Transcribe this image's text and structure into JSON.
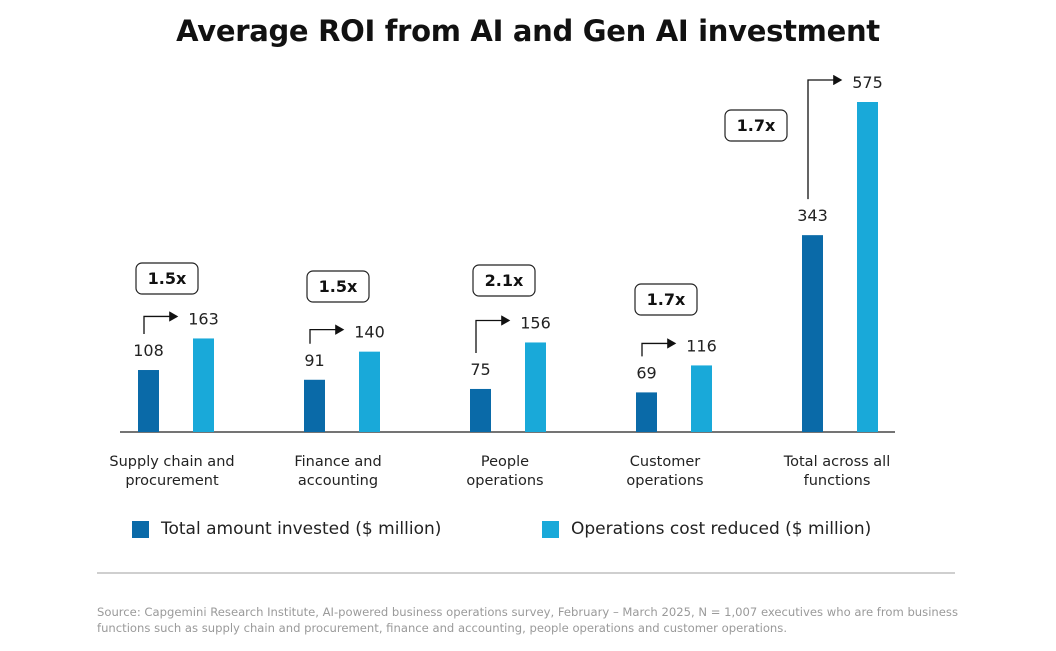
{
  "title": "Average ROI from AI and Gen AI investment",
  "colors": {
    "invested": "#0a6aa8",
    "reduced": "#19a9d9",
    "axis": "#222222",
    "text": "#222222"
  },
  "legend": [
    {
      "label": "Total amount invested ($ million)",
      "color": "#0a6aa8"
    },
    {
      "label": "Operations cost reduced ($ million)",
      "color": "#19a9d9"
    }
  ],
  "chart_data": {
    "type": "bar",
    "title": "Average ROI from AI and Gen AI investment",
    "categories": [
      [
        "Supply chain and",
        "procurement"
      ],
      [
        "Finance and",
        "accounting"
      ],
      [
        "People",
        "operations"
      ],
      [
        "Customer",
        "operations"
      ],
      [
        "Total across all",
        "functions"
      ]
    ],
    "series": [
      {
        "name": "Total amount invested ($ million)",
        "values": [
          108,
          91,
          75,
          69,
          343
        ]
      },
      {
        "name": "Operations cost reduced ($ million)",
        "values": [
          163,
          140,
          156,
          116,
          575
        ]
      }
    ],
    "multipliers": [
      "1.5x",
      "1.5x",
      "2.1x",
      "1.7x",
      "1.7x"
    ],
    "ylim": [
      0,
      575
    ],
    "xlabel": "",
    "ylabel": "",
    "grid": false,
    "legend_position": "bottom"
  },
  "source": "Source: Capgemini Research Institute, AI-powered business operations survey, February – March 2025, N = 1,007 executives who are from business functions such as supply chain and procurement, finance and accounting, people operations and customer operations."
}
